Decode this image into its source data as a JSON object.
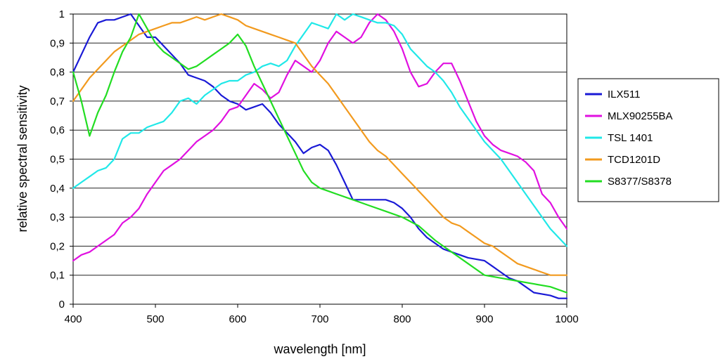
{
  "chart_data": {
    "type": "line",
    "xlabel": "wavelength [nm]",
    "ylabel": "relative spectral sensitivity",
    "xlim": [
      400,
      1000
    ],
    "ylim": [
      0,
      1
    ],
    "x_ticks": [
      400,
      500,
      600,
      700,
      800,
      900,
      1000
    ],
    "x_tick_labels": [
      "400",
      "500",
      "600",
      "700",
      "800",
      "900",
      "1000"
    ],
    "y_ticks": [
      0,
      0.1,
      0.2,
      0.3,
      0.4,
      0.5,
      0.6,
      0.7,
      0.8,
      0.9,
      1
    ],
    "y_tick_labels": [
      "0",
      "0,1",
      "0,2",
      "0,3",
      "0,4",
      "0,5",
      "0,6",
      "0,7",
      "0,8",
      "0,9",
      "1"
    ],
    "grid": "horizontal",
    "legend_position": "right",
    "series": [
      {
        "name": "ILX511",
        "color": "#1a1ad6",
        "points": [
          [
            400,
            0.8
          ],
          [
            410,
            0.86
          ],
          [
            420,
            0.92
          ],
          [
            430,
            0.97
          ],
          [
            440,
            0.98
          ],
          [
            450,
            0.98
          ],
          [
            460,
            0.99
          ],
          [
            470,
            1.0
          ],
          [
            480,
            0.96
          ],
          [
            490,
            0.92
          ],
          [
            500,
            0.92
          ],
          [
            510,
            0.89
          ],
          [
            520,
            0.86
          ],
          [
            530,
            0.83
          ],
          [
            540,
            0.79
          ],
          [
            550,
            0.78
          ],
          [
            560,
            0.77
          ],
          [
            570,
            0.75
          ],
          [
            580,
            0.72
          ],
          [
            590,
            0.7
          ],
          [
            600,
            0.69
          ],
          [
            610,
            0.67
          ],
          [
            620,
            0.68
          ],
          [
            630,
            0.69
          ],
          [
            640,
            0.66
          ],
          [
            650,
            0.62
          ],
          [
            660,
            0.59
          ],
          [
            670,
            0.56
          ],
          [
            680,
            0.52
          ],
          [
            690,
            0.54
          ],
          [
            700,
            0.55
          ],
          [
            710,
            0.53
          ],
          [
            720,
            0.48
          ],
          [
            730,
            0.42
          ],
          [
            740,
            0.36
          ],
          [
            760,
            0.36
          ],
          [
            780,
            0.36
          ],
          [
            790,
            0.35
          ],
          [
            800,
            0.33
          ],
          [
            810,
            0.3
          ],
          [
            820,
            0.26
          ],
          [
            830,
            0.23
          ],
          [
            840,
            0.21
          ],
          [
            850,
            0.19
          ],
          [
            860,
            0.18
          ],
          [
            880,
            0.16
          ],
          [
            900,
            0.15
          ],
          [
            910,
            0.13
          ],
          [
            920,
            0.11
          ],
          [
            930,
            0.09
          ],
          [
            940,
            0.08
          ],
          [
            950,
            0.06
          ],
          [
            960,
            0.04
          ],
          [
            980,
            0.03
          ],
          [
            990,
            0.02
          ],
          [
            1000,
            0.02
          ]
        ]
      },
      {
        "name": "MLX90255BA",
        "color": "#e010e0",
        "points": [
          [
            400,
            0.15
          ],
          [
            410,
            0.17
          ],
          [
            420,
            0.18
          ],
          [
            430,
            0.2
          ],
          [
            440,
            0.22
          ],
          [
            450,
            0.24
          ],
          [
            460,
            0.28
          ],
          [
            470,
            0.3
          ],
          [
            480,
            0.33
          ],
          [
            490,
            0.38
          ],
          [
            500,
            0.42
          ],
          [
            510,
            0.46
          ],
          [
            520,
            0.48
          ],
          [
            530,
            0.5
          ],
          [
            540,
            0.53
          ],
          [
            550,
            0.56
          ],
          [
            560,
            0.58
          ],
          [
            570,
            0.6
          ],
          [
            580,
            0.63
          ],
          [
            590,
            0.67
          ],
          [
            600,
            0.68
          ],
          [
            610,
            0.72
          ],
          [
            620,
            0.76
          ],
          [
            630,
            0.74
          ],
          [
            640,
            0.71
          ],
          [
            650,
            0.73
          ],
          [
            660,
            0.79
          ],
          [
            670,
            0.84
          ],
          [
            680,
            0.82
          ],
          [
            690,
            0.8
          ],
          [
            700,
            0.84
          ],
          [
            710,
            0.9
          ],
          [
            720,
            0.94
          ],
          [
            730,
            0.92
          ],
          [
            740,
            0.9
          ],
          [
            750,
            0.92
          ],
          [
            760,
            0.97
          ],
          [
            770,
            1.0
          ],
          [
            780,
            0.98
          ],
          [
            790,
            0.94
          ],
          [
            800,
            0.88
          ],
          [
            810,
            0.8
          ],
          [
            820,
            0.75
          ],
          [
            830,
            0.76
          ],
          [
            840,
            0.8
          ],
          [
            850,
            0.83
          ],
          [
            860,
            0.83
          ],
          [
            870,
            0.77
          ],
          [
            880,
            0.7
          ],
          [
            890,
            0.63
          ],
          [
            900,
            0.58
          ],
          [
            910,
            0.55
          ],
          [
            920,
            0.53
          ],
          [
            930,
            0.52
          ],
          [
            940,
            0.51
          ],
          [
            950,
            0.49
          ],
          [
            960,
            0.46
          ],
          [
            970,
            0.38
          ],
          [
            980,
            0.35
          ],
          [
            990,
            0.3
          ],
          [
            1000,
            0.26
          ]
        ]
      },
      {
        "name": "TSL 1401",
        "color": "#20e8e8",
        "points": [
          [
            400,
            0.4
          ],
          [
            410,
            0.42
          ],
          [
            420,
            0.44
          ],
          [
            430,
            0.46
          ],
          [
            440,
            0.47
          ],
          [
            450,
            0.5
          ],
          [
            460,
            0.57
          ],
          [
            470,
            0.59
          ],
          [
            480,
            0.59
          ],
          [
            490,
            0.61
          ],
          [
            500,
            0.62
          ],
          [
            510,
            0.63
          ],
          [
            520,
            0.66
          ],
          [
            530,
            0.7
          ],
          [
            540,
            0.71
          ],
          [
            550,
            0.69
          ],
          [
            560,
            0.72
          ],
          [
            570,
            0.74
          ],
          [
            580,
            0.76
          ],
          [
            590,
            0.77
          ],
          [
            600,
            0.77
          ],
          [
            610,
            0.79
          ],
          [
            620,
            0.8
          ],
          [
            630,
            0.82
          ],
          [
            640,
            0.83
          ],
          [
            650,
            0.82
          ],
          [
            660,
            0.84
          ],
          [
            670,
            0.89
          ],
          [
            680,
            0.93
          ],
          [
            690,
            0.97
          ],
          [
            700,
            0.96
          ],
          [
            710,
            0.95
          ],
          [
            720,
            1.0
          ],
          [
            730,
            0.98
          ],
          [
            740,
            1.0
          ],
          [
            750,
            0.99
          ],
          [
            760,
            0.98
          ],
          [
            770,
            0.97
          ],
          [
            780,
            0.97
          ],
          [
            790,
            0.96
          ],
          [
            800,
            0.93
          ],
          [
            810,
            0.88
          ],
          [
            820,
            0.85
          ],
          [
            830,
            0.82
          ],
          [
            840,
            0.8
          ],
          [
            850,
            0.77
          ],
          [
            860,
            0.73
          ],
          [
            870,
            0.68
          ],
          [
            880,
            0.64
          ],
          [
            890,
            0.6
          ],
          [
            900,
            0.56
          ],
          [
            910,
            0.53
          ],
          [
            920,
            0.5
          ],
          [
            930,
            0.46
          ],
          [
            940,
            0.42
          ],
          [
            950,
            0.38
          ],
          [
            960,
            0.34
          ],
          [
            970,
            0.3
          ],
          [
            980,
            0.26
          ],
          [
            990,
            0.23
          ],
          [
            1000,
            0.2
          ]
        ]
      },
      {
        "name": "TCD1201D",
        "color": "#f29a1e",
        "points": [
          [
            400,
            0.7
          ],
          [
            410,
            0.74
          ],
          [
            420,
            0.78
          ],
          [
            430,
            0.81
          ],
          [
            440,
            0.84
          ],
          [
            450,
            0.87
          ],
          [
            460,
            0.89
          ],
          [
            470,
            0.91
          ],
          [
            480,
            0.93
          ],
          [
            490,
            0.94
          ],
          [
            500,
            0.95
          ],
          [
            510,
            0.96
          ],
          [
            520,
            0.97
          ],
          [
            530,
            0.97
          ],
          [
            540,
            0.98
          ],
          [
            550,
            0.99
          ],
          [
            560,
            0.98
          ],
          [
            570,
            0.99
          ],
          [
            580,
            1.0
          ],
          [
            590,
            0.99
          ],
          [
            600,
            0.98
          ],
          [
            610,
            0.96
          ],
          [
            620,
            0.95
          ],
          [
            630,
            0.94
          ],
          [
            640,
            0.93
          ],
          [
            650,
            0.92
          ],
          [
            660,
            0.91
          ],
          [
            670,
            0.9
          ],
          [
            680,
            0.86
          ],
          [
            690,
            0.82
          ],
          [
            700,
            0.79
          ],
          [
            710,
            0.76
          ],
          [
            720,
            0.72
          ],
          [
            730,
            0.68
          ],
          [
            740,
            0.64
          ],
          [
            750,
            0.6
          ],
          [
            760,
            0.56
          ],
          [
            770,
            0.53
          ],
          [
            780,
            0.51
          ],
          [
            790,
            0.48
          ],
          [
            800,
            0.45
          ],
          [
            810,
            0.42
          ],
          [
            820,
            0.39
          ],
          [
            830,
            0.36
          ],
          [
            840,
            0.33
          ],
          [
            850,
            0.3
          ],
          [
            860,
            0.28
          ],
          [
            870,
            0.27
          ],
          [
            880,
            0.25
          ],
          [
            890,
            0.23
          ],
          [
            900,
            0.21
          ],
          [
            910,
            0.2
          ],
          [
            920,
            0.18
          ],
          [
            930,
            0.16
          ],
          [
            940,
            0.14
          ],
          [
            950,
            0.13
          ],
          [
            960,
            0.12
          ],
          [
            970,
            0.11
          ],
          [
            980,
            0.1
          ],
          [
            990,
            0.1
          ],
          [
            1000,
            0.1
          ]
        ]
      },
      {
        "name": "S8377/S8378",
        "color": "#22dd22",
        "points": [
          [
            400,
            0.8
          ],
          [
            410,
            0.7
          ],
          [
            420,
            0.58
          ],
          [
            430,
            0.66
          ],
          [
            440,
            0.72
          ],
          [
            450,
            0.8
          ],
          [
            460,
            0.87
          ],
          [
            470,
            0.92
          ],
          [
            480,
            1.0
          ],
          [
            490,
            0.95
          ],
          [
            500,
            0.9
          ],
          [
            510,
            0.87
          ],
          [
            520,
            0.85
          ],
          [
            530,
            0.83
          ],
          [
            540,
            0.81
          ],
          [
            550,
            0.82
          ],
          [
            560,
            0.84
          ],
          [
            570,
            0.86
          ],
          [
            580,
            0.88
          ],
          [
            590,
            0.9
          ],
          [
            600,
            0.93
          ],
          [
            610,
            0.89
          ],
          [
            620,
            0.82
          ],
          [
            630,
            0.76
          ],
          [
            640,
            0.7
          ],
          [
            650,
            0.64
          ],
          [
            660,
            0.58
          ],
          [
            670,
            0.52
          ],
          [
            680,
            0.46
          ],
          [
            690,
            0.42
          ],
          [
            700,
            0.4
          ],
          [
            710,
            0.39
          ],
          [
            720,
            0.38
          ],
          [
            740,
            0.36
          ],
          [
            760,
            0.34
          ],
          [
            780,
            0.32
          ],
          [
            800,
            0.3
          ],
          [
            820,
            0.27
          ],
          [
            840,
            0.22
          ],
          [
            860,
            0.18
          ],
          [
            880,
            0.14
          ],
          [
            900,
            0.1
          ],
          [
            920,
            0.09
          ],
          [
            940,
            0.08
          ],
          [
            960,
            0.07
          ],
          [
            980,
            0.06
          ],
          [
            1000,
            0.04
          ]
        ]
      }
    ]
  }
}
